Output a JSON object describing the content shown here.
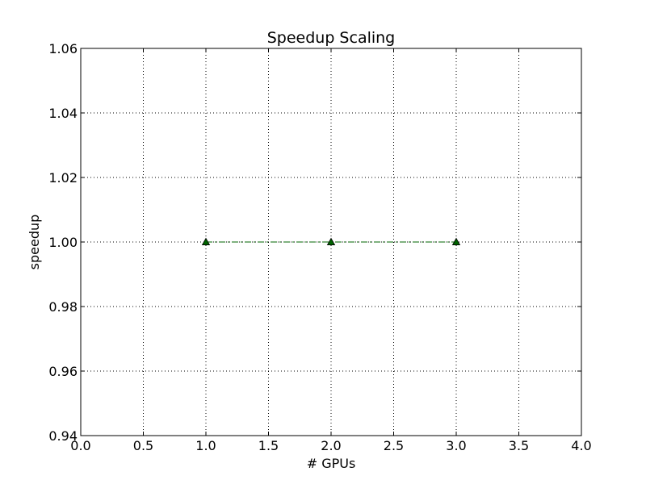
{
  "chart_data": {
    "type": "line",
    "title": "Speedup Scaling",
    "xlabel": "# GPUs",
    "ylabel": "speedup",
    "xlim": [
      0.0,
      4.0
    ],
    "ylim": [
      0.94,
      1.06
    ],
    "xticks": [
      "0.0",
      "0.5",
      "1.0",
      "1.5",
      "2.0",
      "2.5",
      "3.0",
      "3.5",
      "4.0"
    ],
    "yticks": [
      "0.94",
      "0.96",
      "0.98",
      "1.00",
      "1.02",
      "1.04",
      "1.06"
    ],
    "grid": true,
    "series": [
      {
        "x": [
          1,
          2,
          3
        ],
        "y": [
          1.0,
          1.0,
          1.0
        ],
        "color": "#006400",
        "line_style": "dash-dot",
        "marker": "triangle"
      }
    ]
  }
}
